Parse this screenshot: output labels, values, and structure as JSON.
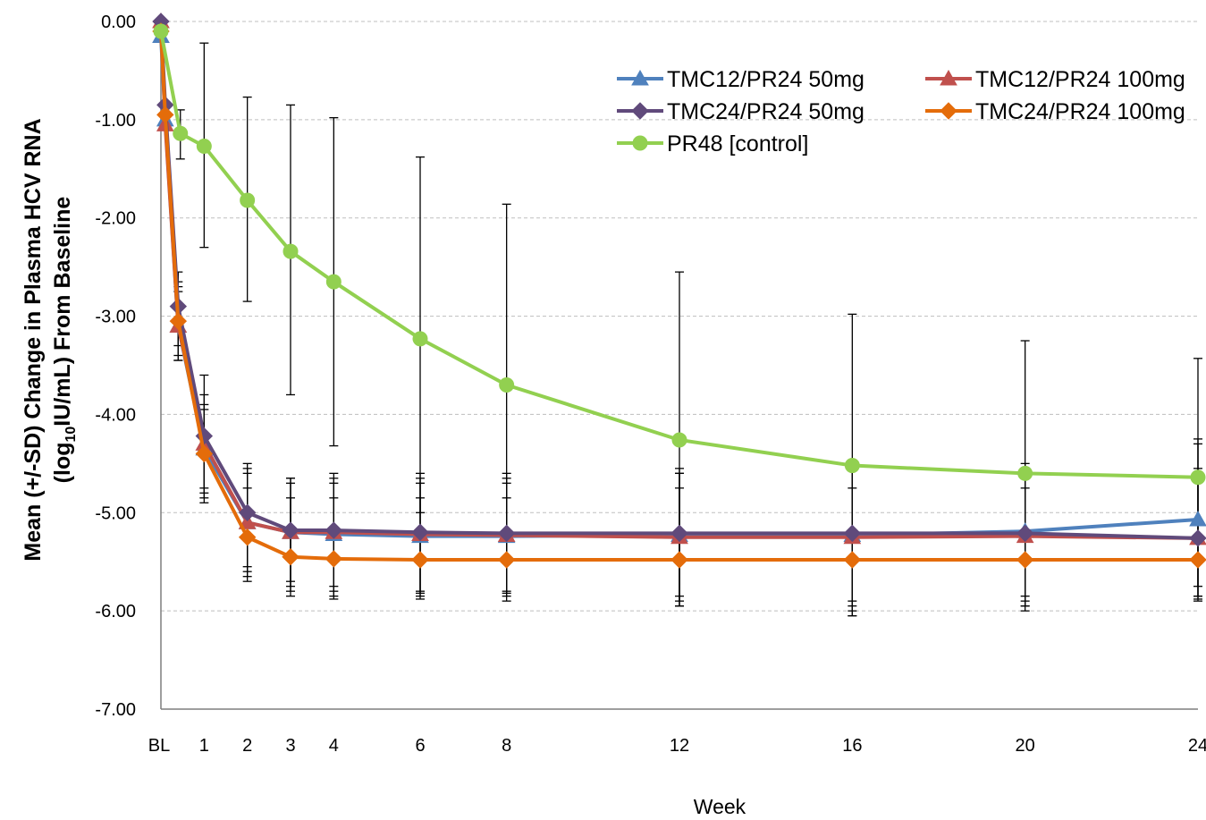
{
  "chart_data": {
    "type": "line",
    "title": "",
    "xlabel": "Week",
    "ylabel_line1": "Mean (+/-SD) Change in Plasma HCV RNA",
    "ylabel_line2_pre": "(log",
    "ylabel_line2_sub": "10",
    "ylabel_line2_post": "IU/mL) From Baseline",
    "ylim": [
      -7,
      0
    ],
    "xlim": [
      0,
      24
    ],
    "y_ticks": [
      0,
      -1,
      -2,
      -3,
      -4,
      -5,
      -6,
      -7
    ],
    "y_tick_labels": [
      "0.00",
      "-1.00",
      "-2.00",
      "-3.00",
      "-4.00",
      "-5.00",
      "-6.00",
      "-7.00"
    ],
    "x_ticks": [
      0,
      1,
      2,
      3,
      4,
      6,
      8,
      12,
      16,
      20,
      24
    ],
    "x_tick_labels": [
      "BL",
      "1",
      "2",
      "3",
      "4",
      "6",
      "8",
      "12",
      "16",
      "20",
      "24"
    ],
    "grid": "horizontal dashed",
    "legend_position": "top-right",
    "series": [
      {
        "name": "TMC12/PR24 50mg",
        "color": "#4F81BD",
        "marker": "triangle",
        "x": [
          0,
          0.1,
          0.4,
          1,
          2,
          3,
          4,
          6,
          8,
          12,
          16,
          20,
          24
        ],
        "y": [
          -0.15,
          -1.0,
          -3.1,
          -4.35,
          -5.1,
          -5.2,
          -5.22,
          -5.24,
          -5.24,
          -5.23,
          -5.23,
          -5.19,
          -5.07
        ],
        "sd_low": [
          null,
          null,
          -3.4,
          -4.8,
          -5.6,
          -5.75,
          -5.8,
          -5.82,
          -5.82,
          -5.9,
          -5.95,
          -5.85,
          -5.75
        ],
        "sd_high": [
          null,
          null,
          -2.7,
          -3.9,
          -4.6,
          -4.7,
          -4.7,
          -4.7,
          -4.7,
          -4.6,
          -4.55,
          -4.55,
          -4.3
        ]
      },
      {
        "name": "TMC12/PR24 100mg",
        "color": "#C0504D",
        "marker": "triangle",
        "x": [
          0,
          0.1,
          0.4,
          1,
          2,
          3,
          4,
          6,
          8,
          12,
          16,
          20,
          24
        ],
        "y": [
          0,
          -1.05,
          -3.1,
          -4.3,
          -5.1,
          -5.2,
          -5.2,
          -5.22,
          -5.23,
          -5.25,
          -5.25,
          -5.24,
          -5.26
        ],
        "sd_low": [
          null,
          null,
          -3.45,
          -4.85,
          -5.65,
          -5.8,
          -5.85,
          -5.85,
          -5.85,
          -5.95,
          -6.0,
          -5.95,
          -5.9
        ],
        "sd_high": [
          null,
          null,
          -2.75,
          -3.8,
          -4.55,
          -4.65,
          -4.65,
          -4.65,
          -4.65,
          -4.6,
          -4.55,
          -4.55,
          -4.6
        ]
      },
      {
        "name": "TMC24/PR24 50mg",
        "color": "#604A7B",
        "marker": "diamond",
        "x": [
          0,
          0.1,
          0.4,
          1,
          2,
          3,
          4,
          6,
          8,
          12,
          16,
          20,
          24
        ],
        "y": [
          0,
          -0.85,
          -2.9,
          -4.22,
          -5.0,
          -5.18,
          -5.18,
          -5.2,
          -5.21,
          -5.21,
          -5.21,
          -5.21,
          -5.26
        ],
        "sd_low": [
          null,
          null,
          -3.3,
          -4.75,
          -5.55,
          -5.7,
          -5.75,
          -5.8,
          -5.8,
          -5.85,
          -5.9,
          -5.9,
          -5.85
        ],
        "sd_high": [
          null,
          null,
          -2.55,
          -3.6,
          -4.5,
          -4.65,
          -4.6,
          -4.6,
          -4.6,
          -4.55,
          -4.5,
          -4.5,
          -4.25
        ]
      },
      {
        "name": "TMC24/PR24 100mg",
        "color": "#E46C0A",
        "marker": "diamond",
        "x": [
          0,
          0.1,
          0.4,
          1,
          2,
          3,
          4,
          6,
          8,
          12,
          16,
          20,
          24
        ],
        "y": [
          -0.1,
          -0.95,
          -3.05,
          -4.4,
          -5.25,
          -5.45,
          -5.47,
          -5.48,
          -5.48,
          -5.48,
          -5.48,
          -5.48,
          -5.48
        ],
        "sd_low": [
          null,
          null,
          -3.45,
          -4.9,
          -5.7,
          -5.85,
          -5.88,
          -5.88,
          -5.9,
          -5.95,
          -6.05,
          -6.0,
          -5.88
        ],
        "sd_high": [
          null,
          null,
          -2.65,
          -3.95,
          -4.75,
          -4.85,
          -4.85,
          -4.85,
          -4.85,
          -4.75,
          -4.75,
          -4.75,
          -4.55
        ]
      },
      {
        "name": "PR48 [control]",
        "color": "#92D050",
        "marker": "circle",
        "x": [
          0,
          0.45,
          1,
          2,
          3,
          4,
          6,
          8,
          12,
          16,
          20,
          24
        ],
        "y": [
          -0.1,
          -1.14,
          -1.27,
          -1.82,
          -2.34,
          -2.65,
          -3.23,
          -3.7,
          -4.26,
          -4.52,
          -4.6,
          -4.64
        ],
        "sd_low": [
          null,
          -1.4,
          -2.3,
          -2.85,
          -3.8,
          -4.32,
          -5.0,
          -5.5,
          -5.95,
          -6.05,
          -5.95,
          -5.85
        ],
        "sd_high": [
          null,
          -0.9,
          -0.22,
          -0.77,
          -0.85,
          -0.98,
          -1.38,
          -1.86,
          -2.55,
          -2.98,
          -3.25,
          -3.43
        ]
      }
    ]
  }
}
